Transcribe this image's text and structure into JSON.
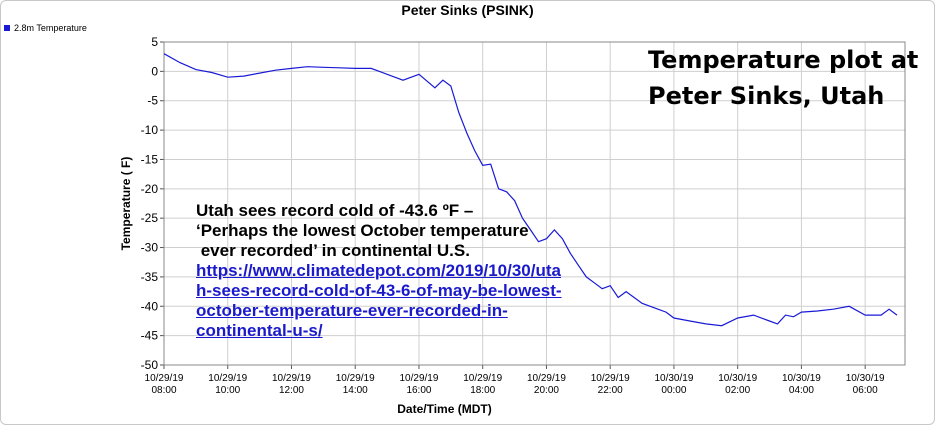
{
  "chart_data": {
    "type": "line",
    "title": "Peter Sinks (PSINK)",
    "xlabel": "Date/Time (MDT)",
    "ylabel": "Temperature ( F)",
    "ylim": [
      -50,
      5
    ],
    "yticks": [
      5,
      0,
      -5,
      -10,
      -15,
      -20,
      -25,
      -30,
      -35,
      -40,
      -45,
      -50
    ],
    "x_start": "10/29/19 08:00",
    "x_end": "10/30/19 07:15",
    "xticks": [
      {
        "date": "10/29/19",
        "time": "08:00"
      },
      {
        "date": "10/29/19",
        "time": "10:00"
      },
      {
        "date": "10/29/19",
        "time": "12:00"
      },
      {
        "date": "10/29/19",
        "time": "14:00"
      },
      {
        "date": "10/29/19",
        "time": "16:00"
      },
      {
        "date": "10/29/19",
        "time": "18:00"
      },
      {
        "date": "10/29/19",
        "time": "20:00"
      },
      {
        "date": "10/29/19",
        "time": "22:00"
      },
      {
        "date": "10/30/19",
        "time": "00:00"
      },
      {
        "date": "10/30/19",
        "time": "02:00"
      },
      {
        "date": "10/30/19",
        "time": "04:00"
      },
      {
        "date": "10/30/19",
        "time": "06:00"
      }
    ],
    "grid": true,
    "legend_position": "top-left",
    "series": [
      {
        "name": "2.8m Temperature",
        "color": "#1a1ad6",
        "x": [
          "10/29/19 08:00",
          "10/29/19 08:30",
          "10/29/19 09:00",
          "10/29/19 09:30",
          "10/29/19 10:00",
          "10/29/19 10:30",
          "10/29/19 11:00",
          "10/29/19 11:30",
          "10/29/19 12:00",
          "10/29/19 12:30",
          "10/29/19 13:00",
          "10/29/19 13:30",
          "10/29/19 14:00",
          "10/29/19 14:30",
          "10/29/19 15:00",
          "10/29/19 15:30",
          "10/29/19 16:00",
          "10/29/19 16:30",
          "10/29/19 16:45",
          "10/29/19 17:00",
          "10/29/19 17:15",
          "10/29/19 17:30",
          "10/29/19 17:45",
          "10/29/19 18:00",
          "10/29/19 18:15",
          "10/29/19 18:30",
          "10/29/19 18:45",
          "10/29/19 19:00",
          "10/29/19 19:15",
          "10/29/19 19:30",
          "10/29/19 19:45",
          "10/29/19 20:00",
          "10/29/19 20:15",
          "10/29/19 20:30",
          "10/29/19 20:45",
          "10/29/19 21:00",
          "10/29/19 21:15",
          "10/29/19 21:30",
          "10/29/19 21:45",
          "10/29/19 22:00",
          "10/29/19 22:15",
          "10/29/19 22:30",
          "10/29/19 23:00",
          "10/29/19 23:30",
          "10/29/19 23:45",
          "10/30/19 00:00",
          "10/30/19 00:30",
          "10/30/19 01:00",
          "10/30/19 01:30",
          "10/30/19 02:00",
          "10/30/19 02:30",
          "10/30/19 03:00",
          "10/30/19 03:15",
          "10/30/19 03:30",
          "10/30/19 03:45",
          "10/30/19 04:00",
          "10/30/19 04:30",
          "10/30/19 05:00",
          "10/30/19 05:30",
          "10/30/19 06:00",
          "10/30/19 06:30",
          "10/30/19 06:45",
          "10/30/19 07:00"
        ],
        "values": [
          3,
          1.5,
          0.3,
          -0.2,
          -1.0,
          -0.8,
          -0.3,
          0.2,
          0.5,
          0.8,
          0.7,
          0.6,
          0.5,
          0.5,
          -0.5,
          -1.5,
          -0.5,
          -2.8,
          -1.5,
          -2.5,
          -7,
          -10.5,
          -13.5,
          -16,
          -15.8,
          -20,
          -20.5,
          -22,
          -25,
          -27,
          -29,
          -28.5,
          -27,
          -28.5,
          -31,
          -33,
          -35,
          -36,
          -37,
          -36.5,
          -38.5,
          -37.5,
          -39.5,
          -40.5,
          -41,
          -42,
          -42.5,
          -43,
          -43.3,
          -42,
          -41.5,
          -42.5,
          -43,
          -41.5,
          -41.8,
          -41,
          -40.8,
          -40.5,
          -40,
          -41.5,
          -41.5,
          -40.5,
          -41.5
        ]
      }
    ],
    "annotations": {
      "overlay_title": [
        "Temperature plot at",
        "Peter Sinks, Utah"
      ],
      "headline": [
        "Utah sees record cold of -43.6 ºF –",
        "‘Perhaps the lowest October temperature",
        " ever recorded’ in continental U.S."
      ],
      "link": [
        "https://www.climatedepot.com/2019/10/30/uta",
        "h-sees-record-cold-of-43-6-of-may-be-lowest-",
        "october-temperature-ever-recorded-in-",
        "continental-u-s/"
      ]
    }
  }
}
